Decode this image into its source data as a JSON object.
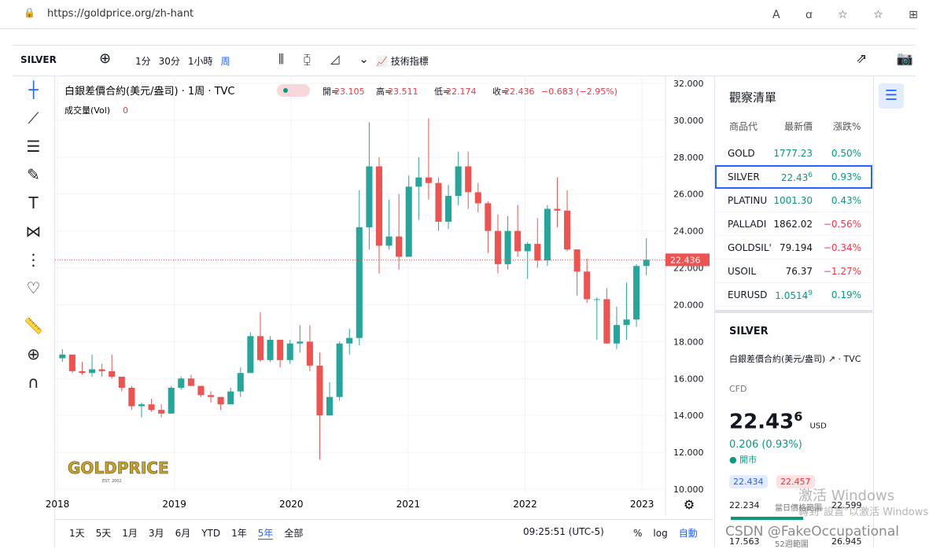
{
  "browser": {
    "url": "https://goldprice.org/zh-hant"
  },
  "toolbar": {
    "symbol": "SILVER",
    "intervals": [
      "1分",
      "30分",
      "1小時",
      "周"
    ],
    "active_interval": 3,
    "indicators": "技術指標"
  },
  "chart_data": {
    "type": "candlestick",
    "title": "白銀差價合約(美元/盎司) · 1周 · TVC",
    "ohlc_labels": [
      "開=",
      "高=",
      "低=",
      "收="
    ],
    "ohlc": [
      23.105,
      23.511,
      22.174,
      22.436
    ],
    "change": "−0.683 (−2.95%)",
    "volume_label": "成交量(Vol)",
    "volume": 0,
    "logo": "GOLDPRICE",
    "logo_sub": "EST. 2002",
    "last_price": 22.436,
    "xlim": [
      2018,
      2023.08
    ],
    "xticks": [
      2018,
      2019,
      2020,
      2021,
      2022,
      2023
    ],
    "ylim": [
      10,
      32
    ],
    "yticks": [
      {
        "value": 10,
        "label": "10.000"
      },
      {
        "value": 12,
        "label": "12.000"
      },
      {
        "value": 14,
        "label": "14.000"
      },
      {
        "value": 16,
        "label": "16.000"
      },
      {
        "value": 18,
        "label": "18.000"
      },
      {
        "value": 20,
        "label": "20.000"
      },
      {
        "value": 22,
        "label": "22.000"
      },
      {
        "value": 24,
        "label": "24.000"
      },
      {
        "value": 26,
        "label": "26.000"
      },
      {
        "value": 28,
        "label": "28.000"
      },
      {
        "value": 30,
        "label": "30.000"
      },
      {
        "value": 32,
        "label": "32.000"
      }
    ],
    "up_color": "#26a69a",
    "down_color": "#ef5350",
    "open": [
      17.1,
      17.3,
      16.4,
      16.3,
      16.5,
      16.4,
      16.1,
      15.5,
      14.5,
      14.6,
      14.3,
      14.1,
      15.5,
      16.0,
      15.6,
      15.1,
      15.0,
      14.6,
      15.3,
      16.3,
      18.3,
      17.0,
      18.1,
      17.0,
      17.9,
      18.0,
      16.7,
      14.0,
      15.0,
      17.9,
      18.2,
      24.2,
      27.5,
      23.2,
      23.7,
      22.6,
      26.4,
      26.9,
      26.6,
      24.5,
      25.9,
      27.5,
      26.1,
      25.5,
      24.0,
      22.2,
      24.0,
      22.9,
      23.3,
      22.4,
      25.2,
      25.1,
      23.0,
      21.8,
      20.3,
      20.3,
      17.9,
      18.9,
      19.2,
      22.1
    ],
    "high": [
      17.6,
      17.3,
      16.9,
      17.3,
      16.8,
      17.3,
      16.1,
      15.6,
      14.7,
      14.9,
      14.6,
      15.6,
      16.1,
      16.2,
      15.6,
      15.3,
      15.0,
      15.5,
      16.6,
      18.5,
      19.6,
      18.3,
      18.1,
      18.1,
      18.9,
      18.9,
      17.4,
      15.8,
      18.0,
      18.7,
      26.2,
      29.9,
      28.0,
      25.7,
      26.0,
      27.0,
      28.0,
      30.1,
      26.9,
      26.5,
      28.3,
      28.3,
      26.6,
      25.6,
      24.9,
      24.8,
      25.4,
      23.4,
      24.7,
      25.4,
      26.9,
      26.2,
      23.0,
      22.5,
      20.4,
      20.9,
      19.9,
      21.2,
      22.2,
      23.6
    ],
    "low": [
      16.9,
      16.3,
      16.2,
      16.1,
      16.1,
      16.0,
      15.3,
      14.3,
      13.9,
      14.2,
      13.9,
      14.1,
      15.4,
      15.6,
      15.0,
      14.7,
      14.3,
      14.6,
      15.0,
      16.3,
      16.9,
      16.9,
      16.6,
      16.8,
      17.4,
      16.4,
      11.6,
      14.0,
      14.8,
      17.3,
      17.8,
      23.0,
      21.7,
      23.0,
      21.9,
      22.6,
      24.6,
      25.7,
      24.0,
      24.1,
      25.4,
      25.2,
      25.0,
      22.8,
      21.7,
      21.9,
      22.6,
      21.4,
      22.0,
      22.1,
      24.2,
      22.9,
      20.5,
      20.1,
      18.1,
      17.9,
      17.6,
      18.1,
      18.8,
      21.6
    ],
    "close": [
      17.3,
      16.4,
      16.3,
      16.5,
      16.4,
      16.1,
      15.5,
      14.5,
      14.6,
      14.3,
      14.1,
      15.5,
      16.0,
      15.6,
      15.1,
      15.0,
      14.6,
      15.3,
      16.3,
      18.3,
      17.0,
      18.1,
      17.0,
      17.9,
      18.0,
      16.7,
      14.0,
      15.0,
      17.9,
      18.2,
      24.2,
      27.5,
      23.2,
      23.7,
      22.6,
      26.4,
      26.9,
      26.6,
      24.5,
      25.9,
      27.5,
      26.1,
      25.5,
      24.0,
      22.2,
      24.0,
      22.9,
      23.3,
      22.4,
      25.2,
      25.1,
      23.0,
      21.8,
      20.3,
      20.3,
      17.9,
      18.9,
      19.2,
      22.1,
      22.436
    ]
  },
  "bottom_bar": {
    "ranges": [
      "1天",
      "5天",
      "1月",
      "3月",
      "6月",
      "YTD",
      "1年",
      "5年",
      "全部"
    ],
    "active_range": 7,
    "time": "09:25:51 (UTC-5)",
    "options": [
      "%",
      "log",
      "自動"
    ]
  },
  "watchlist": {
    "title": "觀察清單",
    "headers": [
      "商品代",
      "最新價",
      "漲跌%"
    ],
    "rows": [
      {
        "symbol": "GOLD",
        "price": "1777.23",
        "change": "0.50%",
        "up": true
      },
      {
        "symbol": "SILVER",
        "price": "22.43",
        "price_small": "6",
        "change": "0.93%",
        "up": true
      },
      {
        "symbol": "PLATINU",
        "price": "1001.30",
        "change": "0.43%",
        "up": true
      },
      {
        "symbol": "PALLADI",
        "price": "1862.02",
        "change": "−0.56%",
        "up": false
      },
      {
        "symbol": "GOLDSIL'",
        "price": "79.194",
        "change": "−0.34%",
        "up": false
      },
      {
        "symbol": "USOIL",
        "price": "76.37",
        "change": "−1.27%",
        "up": false
      },
      {
        "symbol": "EURUSD",
        "price": "1.0514",
        "price_small": "9",
        "change": "0.19%",
        "up": true
      }
    ]
  },
  "details": {
    "symbol": "SILVER",
    "name": "白銀差價合約(美元/盎司) ↗ · TVC",
    "kind": "CFD",
    "price": "22.43",
    "price_small": "6",
    "currency": "USD",
    "change": "0.206 (0.93%)",
    "status": "● 開市",
    "bid": "22.434",
    "ask": "22.457",
    "day_low": "22.234",
    "day_label": "當日價格範圍",
    "day_high": "22.599",
    "week_low": "17.563",
    "week_label": "52週範圍",
    "week_high": "26.945"
  },
  "watermarks": [
    "激活 Windows",
    "轉到\"設置\"以激活 Windows",
    "CSDN @FakeOccupational"
  ]
}
